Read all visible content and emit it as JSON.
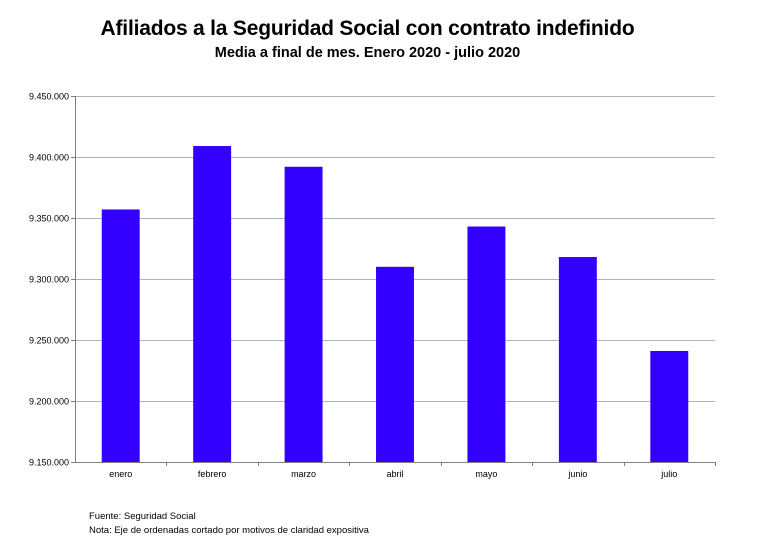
{
  "chart_data": {
    "type": "bar",
    "title": "Afiliados a la Seguridad Social con contrato indefinido",
    "subtitle": "Media a final de mes. Enero 2020 - julio 2020",
    "categories": [
      "enero",
      "febrero",
      "marzo",
      "abril",
      "mayo",
      "junio",
      "julio"
    ],
    "values": [
      9357000,
      9409000,
      9392000,
      9310000,
      9343000,
      9318000,
      9241000
    ],
    "ylim": [
      9150000,
      9450000
    ],
    "yticks": [
      9150000,
      9200000,
      9250000,
      9300000,
      9350000,
      9400000,
      9450000
    ],
    "ytick_labels": [
      "9.150.000",
      "9.200.000",
      "9.250.000",
      "9.300.000",
      "9.350.000",
      "9.400.000",
      "9.450.000"
    ],
    "grid": true,
    "bar_color": "#3300ff"
  },
  "notes": {
    "source": "Fuente: Seguridad Social",
    "note": "Nota: Eje de ordenadas cortado por motivos de claridad expositiva"
  }
}
